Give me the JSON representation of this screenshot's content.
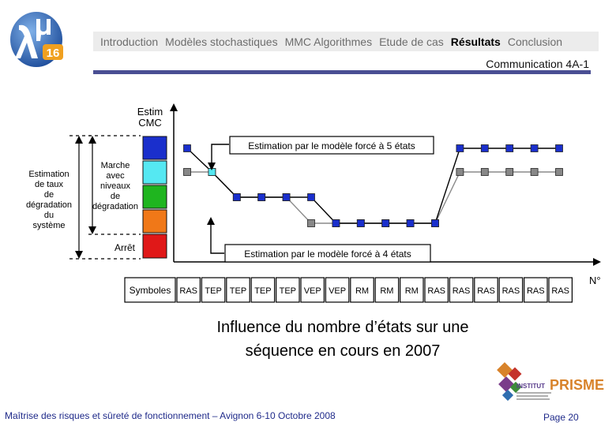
{
  "nav": {
    "items": [
      {
        "label": "Introduction",
        "active": false
      },
      {
        "label": "Modèles stochastiques",
        "active": false
      },
      {
        "label": "MMC  Algorithmes",
        "active": false
      },
      {
        "label": "Etude de cas",
        "active": false
      },
      {
        "label": "Résultats",
        "active": true
      },
      {
        "label": "Conclusion",
        "active": false
      }
    ]
  },
  "header": {
    "communication": "Communication 4A-1",
    "logo_text": "16"
  },
  "diagram": {
    "estim_cmc": [
      "Estim",
      "CMC"
    ],
    "left_bracket_label": [
      "Estimation",
      "de taux",
      "de",
      "dégradation",
      "du",
      "système"
    ],
    "marche_label": [
      "Marche",
      "avec",
      "niveaux",
      "de",
      "dégradation"
    ],
    "arret_label": "Arrêt",
    "state_colors": [
      "#1a2fcc",
      "#55e8f2",
      "#1fb51f",
      "#f07818",
      "#e01818"
    ],
    "callout_5": "Estimation par le modèle forcé à 5 états",
    "callout_4": "Estimation par le modèle forcé à 4 états",
    "x_axis_label": "N°",
    "symbols_header": "Symboles",
    "symbols": [
      "RAS",
      "TEP",
      "TEP",
      "TEP",
      "TEP",
      "VEP",
      "VEP",
      "RM",
      "RM",
      "RM",
      "RAS",
      "RAS",
      "RAS",
      "RAS",
      "RAS",
      "RAS"
    ],
    "series_5_levels": [
      5,
      4,
      3,
      3,
      3,
      3,
      2,
      2,
      2,
      2,
      2,
      5,
      5,
      5,
      5,
      5
    ],
    "series_4_levels": [
      4,
      4,
      3,
      3,
      3,
      2,
      2,
      2,
      2,
      2,
      2,
      4,
      4,
      4,
      4,
      4
    ],
    "series_colors": {
      "five": "#1a2fcc",
      "five_highlight": "#55e8f2",
      "four": "#888888"
    }
  },
  "caption": {
    "line1": "Influence du nombre d’états sur une",
    "line2": "séquence en cours en 2007"
  },
  "footer": {
    "left": "Maîtrise des risques et sûreté de fonctionnement – Avignon  6-10 Octobre 2008",
    "right": "Page 20"
  },
  "prisme": {
    "institut": "INSTITUT",
    "name": "PRISME"
  }
}
